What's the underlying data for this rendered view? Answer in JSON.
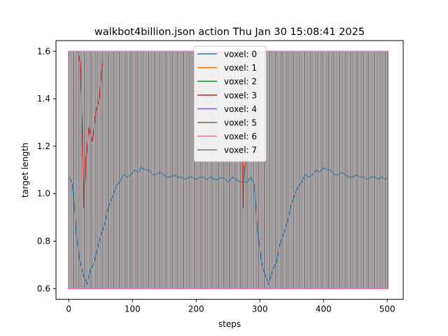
{
  "chart_data": {
    "type": "line",
    "title": "walkbot4billion.json action Thu Jan 30 15:08:41 2025",
    "xlabel": "steps",
    "ylabel": "target length",
    "xlim": [
      -20,
      525
    ],
    "ylim": [
      0.555,
      1.645
    ],
    "x_ticks": [
      0,
      100,
      200,
      300,
      400,
      500
    ],
    "y_ticks": [
      0.6,
      0.8,
      1.0,
      1.2,
      1.4,
      1.6
    ],
    "y_tick_labels": [
      "0.6",
      "0.8",
      "1.0",
      "1.2",
      "1.4",
      "1.6"
    ],
    "grid": false,
    "legend_position": "top-center",
    "x_range": [
      0,
      501
    ],
    "low": 0.6,
    "high": 1.6,
    "period_steps": 5,
    "series": [
      {
        "name": "voxel: 0",
        "color": "#1f77b4"
      },
      {
        "name": "voxel: 1",
        "color": "#ff7f0e"
      },
      {
        "name": "voxel: 2",
        "color": "#2ca02c"
      },
      {
        "name": "voxel: 3",
        "color": "#d62728"
      },
      {
        "name": "voxel: 4",
        "color": "#9467bd"
      },
      {
        "name": "voxel: 5",
        "color": "#8c564b"
      },
      {
        "name": "voxel: 6",
        "color": "#e377c2"
      },
      {
        "name": "voxel: 7",
        "color": "#7f7f7f"
      }
    ],
    "envelope_points": [
      [
        1,
        1.07
      ],
      [
        6,
        1.04
      ],
      [
        12,
        0.83
      ],
      [
        17,
        0.72
      ],
      [
        24,
        0.65
      ],
      [
        29,
        0.62
      ],
      [
        34,
        0.68
      ],
      [
        40,
        0.71
      ],
      [
        46,
        0.78
      ],
      [
        51,
        0.83
      ],
      [
        57,
        0.88
      ],
      [
        63,
        0.95
      ],
      [
        69,
        0.99
      ],
      [
        74,
        1.03
      ],
      [
        80,
        1.05
      ],
      [
        86,
        1.08
      ],
      [
        91,
        1.07
      ],
      [
        97,
        1.08
      ],
      [
        103,
        1.1
      ],
      [
        109,
        1.09
      ],
      [
        114,
        1.11
      ],
      [
        120,
        1.1
      ],
      [
        126,
        1.1
      ],
      [
        131,
        1.08
      ],
      [
        137,
        1.08
      ],
      [
        143,
        1.09
      ],
      [
        149,
        1.08
      ],
      [
        154,
        1.07
      ],
      [
        160,
        1.07
      ],
      [
        166,
        1.08
      ],
      [
        171,
        1.07
      ],
      [
        177,
        1.07
      ],
      [
        183,
        1.06
      ],
      [
        189,
        1.07
      ],
      [
        194,
        1.07
      ],
      [
        200,
        1.06
      ],
      [
        206,
        1.07
      ],
      [
        211,
        1.07
      ],
      [
        217,
        1.06
      ],
      [
        223,
        1.07
      ],
      [
        229,
        1.06
      ],
      [
        234,
        1.06
      ],
      [
        240,
        1.07
      ],
      [
        246,
        1.06
      ],
      [
        251,
        1.05
      ],
      [
        257,
        1.07
      ],
      [
        263,
        1.06
      ],
      [
        269,
        1.05
      ],
      [
        274,
        1.05
      ],
      [
        280,
        1.05
      ],
      [
        286,
        1.07
      ],
      [
        291,
        1.04
      ],
      [
        297,
        0.83
      ],
      [
        302,
        0.72
      ],
      [
        309,
        0.65
      ],
      [
        314,
        0.62
      ],
      [
        320,
        0.68
      ],
      [
        326,
        0.71
      ],
      [
        331,
        0.78
      ],
      [
        337,
        0.83
      ],
      [
        343,
        0.88
      ],
      [
        349,
        0.95
      ],
      [
        354,
        0.99
      ],
      [
        360,
        1.03
      ],
      [
        366,
        1.05
      ],
      [
        371,
        1.08
      ],
      [
        377,
        1.07
      ],
      [
        383,
        1.08
      ],
      [
        389,
        1.1
      ],
      [
        394,
        1.09
      ],
      [
        400,
        1.11
      ],
      [
        406,
        1.1
      ],
      [
        411,
        1.1
      ],
      [
        417,
        1.08
      ],
      [
        423,
        1.08
      ],
      [
        429,
        1.09
      ],
      [
        434,
        1.08
      ],
      [
        440,
        1.07
      ],
      [
        446,
        1.07
      ],
      [
        451,
        1.08
      ],
      [
        457,
        1.07
      ],
      [
        463,
        1.07
      ],
      [
        469,
        1.06
      ],
      [
        474,
        1.07
      ],
      [
        480,
        1.07
      ],
      [
        486,
        1.06
      ],
      [
        491,
        1.07
      ],
      [
        497,
        1.06
      ],
      [
        501,
        1.07
      ]
    ],
    "red_segments": [
      [
        [
          14,
          1.6
        ],
        [
          18,
          1.55
        ],
        [
          21,
          1.3
        ],
        [
          24,
          0.94
        ],
        [
          27,
          1.15
        ],
        [
          32,
          1.28
        ],
        [
          37,
          1.22
        ],
        [
          43,
          1.35
        ],
        [
          48,
          1.4
        ],
        [
          53,
          1.55
        ]
      ],
      [
        [
          270,
          1.6
        ],
        [
          272,
          1.3
        ],
        [
          274,
          0.94
        ],
        [
          276,
          1.1
        ],
        [
          279,
          1.15
        ]
      ]
    ]
  }
}
